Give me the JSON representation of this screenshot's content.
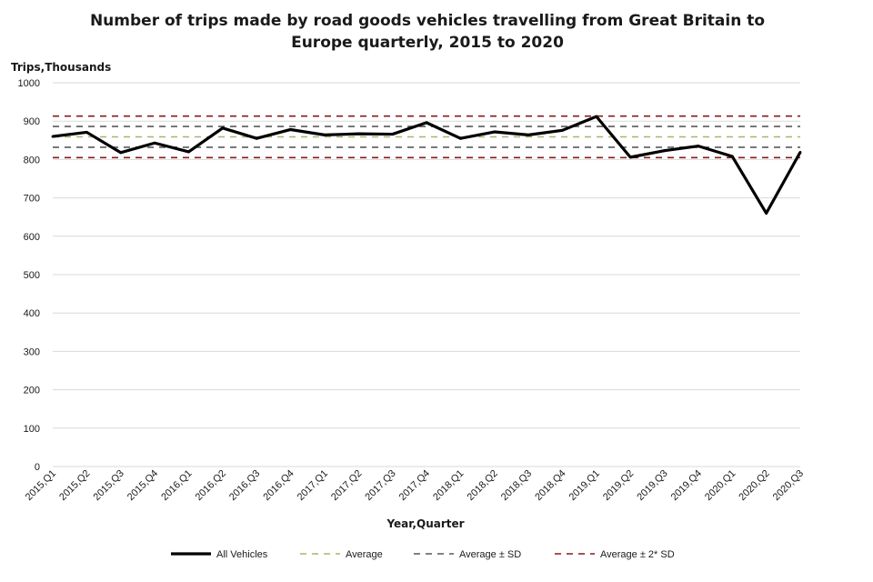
{
  "chart_data": {
    "type": "line",
    "title_line1": "Number of trips made by road goods vehicles travelling from Great Britain to",
    "title_line2": "Europe quarterly, 2015 to 2020",
    "ylabel": "Trips,Thousands",
    "xlabel": "Year,Quarter",
    "ylim": [
      0,
      1000
    ],
    "ytick_step": 100,
    "grid": true,
    "legend_position": "bottom",
    "categories": [
      "2015,Q1",
      "2015,Q2",
      "2015,Q3",
      "2015,Q4",
      "2016,Q1",
      "2016,Q2",
      "2016,Q3",
      "2016,Q4",
      "2017,Q1",
      "2017,Q2",
      "2017,Q3",
      "2017,Q4",
      "2018,Q1",
      "2018,Q2",
      "2018,Q3",
      "2018,Q4",
      "2019,Q1",
      "2019,Q2",
      "2019,Q3",
      "2019,Q4",
      "2020,Q1",
      "2020,Q2",
      "2020,Q3"
    ],
    "series": [
      {
        "name": "All Vehicles",
        "color": "#000000",
        "style": "solid",
        "values": [
          860,
          871,
          818,
          843,
          820,
          882,
          855,
          878,
          864,
          867,
          866,
          896,
          855,
          872,
          864,
          876,
          912,
          806,
          823,
          835,
          808,
          660,
          819
        ]
      }
    ],
    "reference_lines": [
      {
        "name": "Average",
        "value": 859,
        "color": "#a3b86c",
        "style": "dashed"
      },
      {
        "name": "Average ± SD",
        "value": 886,
        "color": "#595959",
        "style": "dashed"
      },
      {
        "name": "Average ± SD",
        "value": 832,
        "color": "#595959",
        "style": "dashed"
      },
      {
        "name": "Average ± 2* SD",
        "value": 913,
        "color": "#8b1a1a",
        "style": "dashed"
      },
      {
        "name": "Average ± 2* SD",
        "value": 805,
        "color": "#8b1a1a",
        "style": "dashed"
      }
    ],
    "legend": [
      {
        "label": "All Vehicles",
        "color": "#000000",
        "style": "solid"
      },
      {
        "label": "Average",
        "color": "#a3b86c",
        "style": "dashed"
      },
      {
        "label": "Average ± SD",
        "color": "#595959",
        "style": "dashed"
      },
      {
        "label": "Average ± 2* SD",
        "color": "#8b1a1a",
        "style": "dashed"
      }
    ]
  }
}
